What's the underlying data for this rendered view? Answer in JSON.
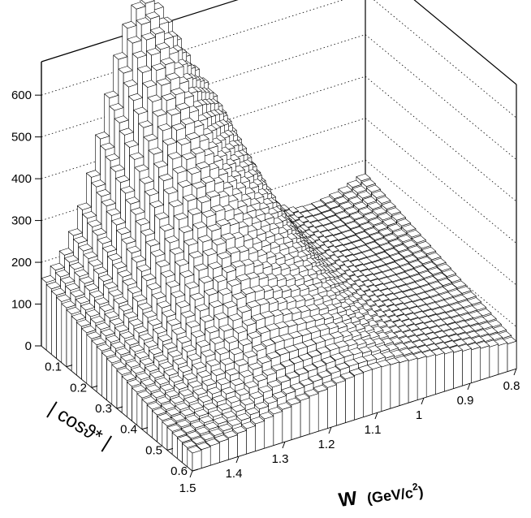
{
  "chart_data": {
    "type": "lego3d",
    "title": "",
    "axes": {
      "x": {
        "label_main": "W",
        "label_unit": "(GeV/c",
        "label_sup": "2",
        "label_close": ")",
        "range": [
          0.8,
          1.5
        ],
        "ticks": [
          "1.5",
          "1.4",
          "1.3",
          "1.2",
          "1.1",
          "1",
          "0.9",
          "0.8"
        ]
      },
      "y": {
        "label": "| cosϑ* |",
        "range": [
          0.0,
          0.6
        ],
        "ticks": [
          "0.1",
          "0.2",
          "0.3",
          "0.4",
          "0.5",
          "0.6"
        ]
      },
      "z": {
        "range": [
          0,
          680
        ],
        "ticks": [
          "0",
          "100",
          "200",
          "300",
          "400",
          "500",
          "600"
        ]
      }
    },
    "grid": true,
    "x_bins": 36,
    "y_bins": 30,
    "surface_samples": {
      "description_free": true,
      "w_values": [
        0.8,
        0.9,
        1.0,
        1.1,
        1.2,
        1.3,
        1.4,
        1.5
      ],
      "cos_values": [
        0.0,
        0.1,
        0.2,
        0.3,
        0.4,
        0.5,
        0.6
      ],
      "z_at_cos0": [
        230,
        150,
        120,
        250,
        330,
        600,
        380,
        70
      ],
      "z_at_cos06": [
        60,
        70,
        80,
        80,
        80,
        40,
        20,
        10
      ]
    }
  }
}
